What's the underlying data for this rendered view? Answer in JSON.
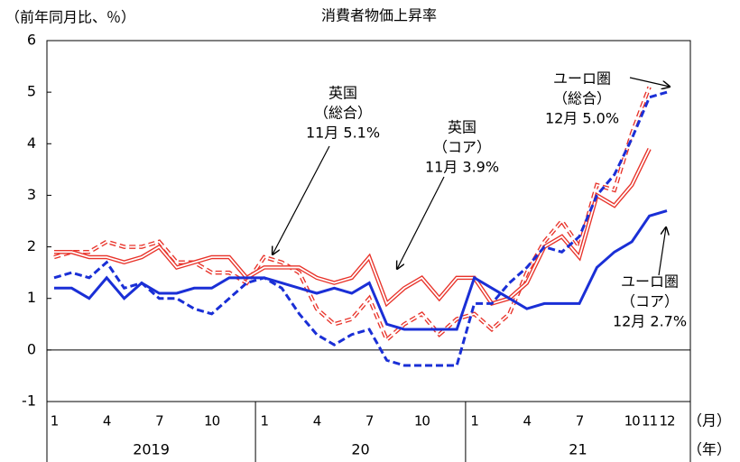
{
  "chart_data": {
    "type": "line",
    "title": "消費者物価上昇率",
    "y_axis_label": "（前年同月比、％）",
    "x_axis_label": "（月）",
    "group_axis_label": "（年）",
    "categories": [
      "1",
      null,
      null,
      "4",
      null,
      null,
      "7",
      null,
      null,
      "10",
      null,
      null,
      "1",
      null,
      null,
      "4",
      null,
      null,
      "7",
      null,
      null,
      "10",
      null,
      null,
      "1",
      null,
      null,
      "4",
      null,
      null,
      "7",
      null,
      null,
      "10",
      "11",
      "12"
    ],
    "groups": [
      {
        "label": "2019",
        "span": 12
      },
      {
        "label": "20",
        "span": 12
      },
      {
        "label": "21",
        "span": 12
      }
    ],
    "series": [
      {
        "name": "英国（総合）",
        "color": "#e8332a",
        "dashed": true,
        "double": true,
        "values": [
          1.8,
          1.9,
          1.9,
          2.1,
          2.0,
          2.0,
          2.1,
          1.7,
          1.7,
          1.5,
          1.5,
          1.3,
          1.8,
          1.7,
          1.5,
          0.8,
          0.5,
          0.6,
          1.0,
          0.2,
          0.5,
          0.7,
          0.3,
          0.6,
          0.7,
          0.4,
          0.7,
          1.5,
          2.1,
          2.5,
          2.0,
          3.2,
          3.1,
          4.2,
          5.1,
          null
        ]
      },
      {
        "name": "英国（コア）",
        "color": "#e8332a",
        "dashed": false,
        "double": true,
        "values": [
          1.9,
          1.9,
          1.8,
          1.8,
          1.7,
          1.8,
          2.0,
          1.6,
          1.7,
          1.8,
          1.8,
          1.4,
          1.6,
          1.6,
          1.6,
          1.4,
          1.3,
          1.4,
          1.8,
          0.9,
          1.2,
          1.4,
          1.0,
          1.4,
          1.4,
          0.9,
          1.0,
          1.3,
          2.0,
          2.2,
          1.8,
          3.0,
          2.8,
          3.2,
          3.9,
          null
        ]
      },
      {
        "name": "ユーロ圏（総合）",
        "color": "#1a2fd6",
        "dashed": true,
        "double": false,
        "values": [
          1.4,
          1.5,
          1.4,
          1.7,
          1.2,
          1.3,
          1.0,
          1.0,
          0.8,
          0.7,
          1.0,
          1.3,
          1.4,
          1.2,
          0.7,
          0.3,
          0.1,
          0.3,
          0.4,
          -0.2,
          -0.3,
          -0.3,
          -0.3,
          -0.3,
          0.9,
          0.9,
          1.3,
          1.6,
          2.0,
          1.9,
          2.2,
          3.0,
          3.4,
          4.1,
          4.9,
          5.0
        ]
      },
      {
        "name": "ユーロ圏（コア）",
        "color": "#1a2fd6",
        "dashed": false,
        "double": false,
        "values": [
          1.2,
          1.2,
          1.0,
          1.4,
          1.0,
          1.3,
          1.1,
          1.1,
          1.2,
          1.2,
          1.4,
          1.4,
          1.4,
          1.3,
          1.2,
          1.1,
          1.2,
          1.1,
          1.3,
          0.5,
          0.4,
          0.4,
          0.4,
          0.4,
          1.4,
          1.2,
          1.0,
          0.8,
          0.9,
          0.9,
          0.9,
          1.6,
          1.9,
          2.1,
          2.6,
          2.7
        ]
      }
    ],
    "annotations": [
      {
        "lines": [
          "英国",
          "（総合）",
          "11月 5.1%"
        ]
      },
      {
        "lines": [
          "英国",
          "（コア）",
          "11月 3.9%"
        ]
      },
      {
        "lines": [
          "ユーロ圏",
          "（総合）",
          "12月 5.0%"
        ]
      },
      {
        "lines": [
          "ユーロ圏",
          "（コア）",
          "12月 2.7%"
        ]
      }
    ],
    "ylim": [
      -1,
      6
    ],
    "yticks": [
      -1,
      0,
      1,
      2,
      3,
      4,
      5,
      6
    ]
  }
}
